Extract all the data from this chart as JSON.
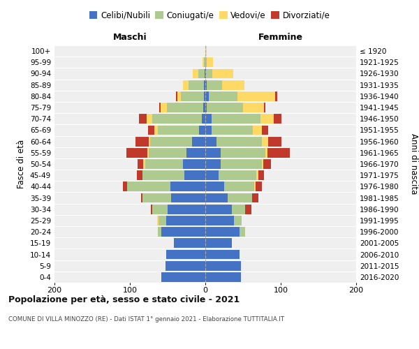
{
  "age_groups": [
    "0-4",
    "5-9",
    "10-14",
    "15-19",
    "20-24",
    "25-29",
    "30-34",
    "35-39",
    "40-44",
    "45-49",
    "50-54",
    "55-59",
    "60-64",
    "65-69",
    "70-74",
    "75-79",
    "80-84",
    "85-89",
    "90-94",
    "95-99",
    "100+"
  ],
  "birth_years": [
    "2016-2020",
    "2011-2015",
    "2006-2010",
    "2001-2005",
    "1996-2000",
    "1991-1995",
    "1986-1990",
    "1981-1985",
    "1976-1980",
    "1971-1975",
    "1966-1970",
    "1961-1965",
    "1956-1960",
    "1951-1955",
    "1946-1950",
    "1941-1945",
    "1936-1940",
    "1931-1935",
    "1926-1930",
    "1921-1925",
    "≤ 1920"
  ],
  "males_celibi": [
    58,
    53,
    52,
    42,
    58,
    52,
    50,
    45,
    46,
    28,
    30,
    25,
    18,
    8,
    5,
    3,
    2,
    2,
    1,
    0,
    0
  ],
  "males_coniugati": [
    0,
    0,
    0,
    0,
    5,
    10,
    20,
    38,
    58,
    55,
    50,
    50,
    55,
    55,
    65,
    48,
    30,
    20,
    8,
    2,
    0
  ],
  "males_vedovi": [
    0,
    0,
    0,
    0,
    0,
    2,
    0,
    0,
    0,
    0,
    2,
    2,
    2,
    5,
    8,
    8,
    5,
    8,
    8,
    2,
    0
  ],
  "males_divorziati": [
    0,
    0,
    0,
    0,
    0,
    0,
    2,
    2,
    5,
    8,
    8,
    28,
    18,
    8,
    10,
    2,
    2,
    0,
    0,
    0,
    0
  ],
  "females_nubili": [
    47,
    47,
    45,
    35,
    45,
    38,
    35,
    30,
    25,
    18,
    20,
    20,
    15,
    8,
    8,
    2,
    5,
    2,
    1,
    0,
    0
  ],
  "females_coniugate": [
    0,
    0,
    0,
    0,
    8,
    10,
    18,
    32,
    40,
    50,
    55,
    60,
    60,
    55,
    65,
    48,
    38,
    20,
    8,
    2,
    0
  ],
  "females_vedove": [
    0,
    0,
    0,
    0,
    0,
    0,
    0,
    0,
    2,
    2,
    2,
    2,
    8,
    12,
    18,
    28,
    50,
    30,
    28,
    8,
    2
  ],
  "females_divorziate": [
    0,
    0,
    0,
    0,
    0,
    0,
    8,
    8,
    8,
    8,
    10,
    30,
    18,
    8,
    10,
    2,
    2,
    0,
    0,
    0,
    0
  ],
  "color_celibi": "#4472C4",
  "color_coniugati": "#AECA8E",
  "color_vedovi": "#FFD966",
  "color_divorziati": "#C0392B",
  "legend_labels": [
    "Celibi/Nubili",
    "Coniugati/e",
    "Vedovi/e",
    "Divorziati/e"
  ],
  "title": "Popolazione per età, sesso e stato civile - 2021",
  "subtitle": "COMUNE DI VILLA MINOZZO (RE) - Dati ISTAT 1° gennaio 2021 - Elaborazione TUTTITALIA.IT",
  "label_maschi": "Maschi",
  "label_femmine": "Femmine",
  "ylabel_left": "Fasce di età",
  "ylabel_right": "Anni di nascita",
  "xlim": 200,
  "bg_color": "#ffffff",
  "plot_bg_color": "#efefef"
}
